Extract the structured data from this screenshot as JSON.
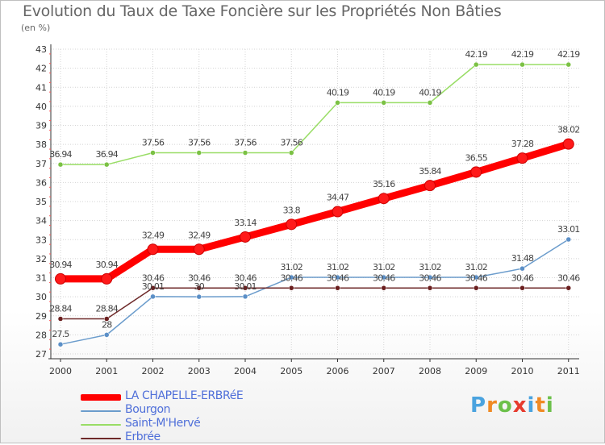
{
  "title": "Evolution du Taux de Taxe Foncière sur les Propriétés Non Bâties",
  "subtitle": "(en %)",
  "logo": {
    "letters": [
      "P",
      "r",
      "o",
      "x",
      "i",
      "t",
      "i"
    ],
    "colors": [
      "#4aa3df",
      "#f08a24",
      "#6cc04a",
      "#e63b2e",
      "#4aa3df",
      "#f08a24",
      "#6cc04a"
    ]
  },
  "chart_data": {
    "type": "line",
    "title": "Evolution du Taux de Taxe Foncière sur les Propriétés Non Bâties",
    "ylabel": "(en %)",
    "xlabel": "",
    "ylim": [
      27,
      43
    ],
    "yticks": [
      "27",
      "28",
      "29",
      "30",
      "31",
      "32",
      "33",
      "34",
      "35",
      "36",
      "37",
      "38",
      "39",
      "40",
      "41",
      "42",
      "43"
    ],
    "categories": [
      "2000",
      "2001",
      "2002",
      "2003",
      "2004",
      "2005",
      "2006",
      "2007",
      "2008",
      "2009",
      "2010",
      "2011"
    ],
    "series": [
      {
        "name": "LA CHAPELLE-ERBRéE",
        "color": "#ff0000",
        "highlight": true,
        "values": [
          30.94,
          30.94,
          32.49,
          32.49,
          33.14,
          33.8,
          34.47,
          35.16,
          35.84,
          36.55,
          37.28,
          38.02
        ],
        "labels": [
          "30.94",
          "30.94",
          "32.49",
          "32.49",
          "33.14",
          "33.8",
          "34.47",
          "35.16",
          "35.84",
          "36.55",
          "37.28",
          "38.02"
        ]
      },
      {
        "name": "Bourgon",
        "color": "#6b9ccc",
        "highlight": false,
        "values": [
          27.5,
          28,
          30.01,
          30,
          30.01,
          31.02,
          31.02,
          31.02,
          31.02,
          31.02,
          31.48,
          33.01
        ],
        "labels": [
          "27.5",
          "28",
          "30.01",
          "30",
          "30.01",
          "31.02",
          "31.02",
          "31.02",
          "31.02",
          "31.02",
          "31.48",
          "33.01"
        ]
      },
      {
        "name": "Saint-M'Hervé",
        "color": "#99dd66",
        "highlight": false,
        "values": [
          36.94,
          36.94,
          37.56,
          37.56,
          37.56,
          37.56,
          40.19,
          40.19,
          40.19,
          42.19,
          42.19,
          42.19
        ],
        "labels": [
          "36.94",
          "36.94",
          "37.56",
          "37.56",
          "37.56",
          "37.56",
          "40.19",
          "40.19",
          "40.19",
          "42.19",
          "42.19",
          "42.19"
        ]
      },
      {
        "name": "Erbrée",
        "color": "#6e2a2a",
        "highlight": false,
        "values": [
          28.84,
          28.84,
          30.46,
          30.46,
          30.46,
          30.46,
          30.46,
          30.46,
          30.46,
          30.46,
          30.46,
          30.46
        ],
        "labels": [
          "28.84",
          "28.84",
          "30.46",
          "30.46",
          "30.46",
          "30.46",
          "30.46",
          "30.46",
          "30.46",
          "30.46",
          "30.46",
          "30.46"
        ]
      }
    ]
  }
}
